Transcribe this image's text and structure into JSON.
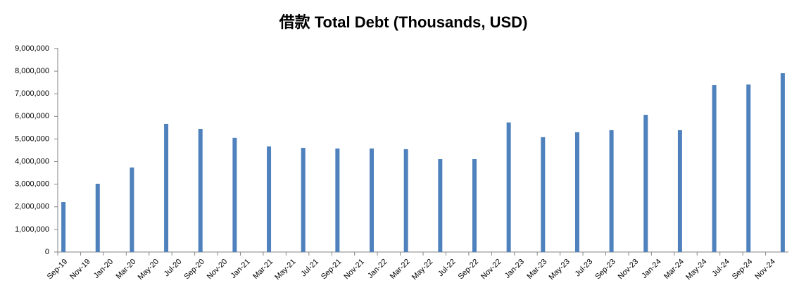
{
  "chart_data": {
    "type": "bar",
    "title": "借款 Total Debt (Thousands, USD)",
    "categories": [
      "Sep-19",
      null,
      "Nov-19",
      null,
      "Jan-20",
      null,
      "Mar-20",
      null,
      "May-20",
      null,
      "Jul-20",
      null,
      "Sep-20",
      null,
      "Nov-20",
      null,
      "Jan-21",
      null,
      "Mar-21",
      null,
      "May-21",
      null,
      "Jul-21",
      null,
      "Sep-21",
      null,
      "Nov-21",
      null,
      "Jan-22",
      null,
      "Mar-22",
      null,
      "May-22",
      null,
      "Jul-22",
      null,
      "Sep-22",
      null,
      "Nov-22",
      null,
      "Jan-23",
      null,
      "Mar-23",
      null,
      "May-23",
      null,
      "Jul-23",
      null,
      "Sep-23",
      null,
      "Nov-23",
      null,
      "Jan-24",
      null,
      "Mar-24",
      null,
      "May-24",
      null,
      "Jul-24",
      null,
      "Sep-24",
      null,
      "Nov-24",
      null
    ],
    "values": [
      2210000,
      null,
      null,
      3020000,
      null,
      null,
      3740000,
      null,
      null,
      5670000,
      null,
      null,
      5450000,
      null,
      null,
      5050000,
      null,
      null,
      4670000,
      null,
      null,
      4610000,
      null,
      null,
      4580000,
      null,
      null,
      4580000,
      null,
      null,
      4550000,
      null,
      null,
      4110000,
      null,
      null,
      4110000,
      null,
      null,
      5730000,
      null,
      null,
      5080000,
      null,
      null,
      5300000,
      null,
      null,
      5390000,
      null,
      null,
      6070000,
      null,
      null,
      5390000,
      null,
      null,
      7380000,
      null,
      null,
      7410000,
      null,
      null,
      7910000
    ],
    "color": "#4f81bd",
    "ylim": [
      0,
      9000000
    ],
    "yticks": [
      0,
      {
        "value": 1000000,
        "label": "1,000,000"
      },
      {
        "value": 2000000,
        "label": "2,000,000"
      },
      {
        "value": 3000000,
        "label": "3,000,000"
      },
      {
        "value": 4000000,
        "label": "4,000,000"
      },
      {
        "value": 5000000,
        "label": "5,000,000"
      },
      {
        "value": 6000000,
        "label": "6,000,000"
      },
      {
        "value": 7000000,
        "label": "7,000,000"
      },
      {
        "value": 8000000,
        "label": "8,000,000"
      },
      {
        "value": 9000000,
        "label": "9,000,000"
      }
    ],
    "grid": false
  }
}
